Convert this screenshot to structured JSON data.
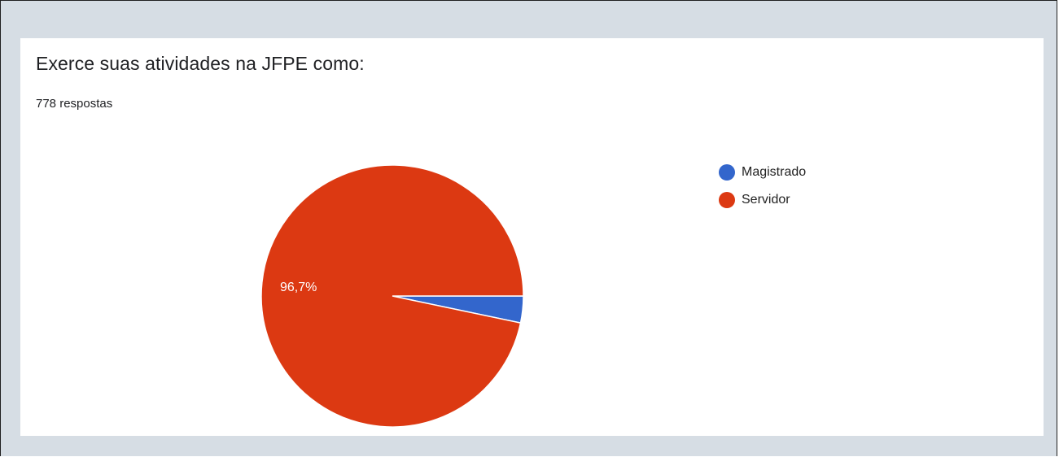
{
  "card": {
    "title": "Exerce suas atividades na JFPE como:",
    "response_count": "778 respostas"
  },
  "chart_data": {
    "type": "pie",
    "categories": [
      "Magistrado",
      "Servidor"
    ],
    "values": [
      3.3,
      96.7
    ],
    "slice_labels": [
      "",
      "96,7%"
    ],
    "colors": [
      "#3366cc",
      "#dc3912"
    ],
    "legend_position": "right"
  }
}
